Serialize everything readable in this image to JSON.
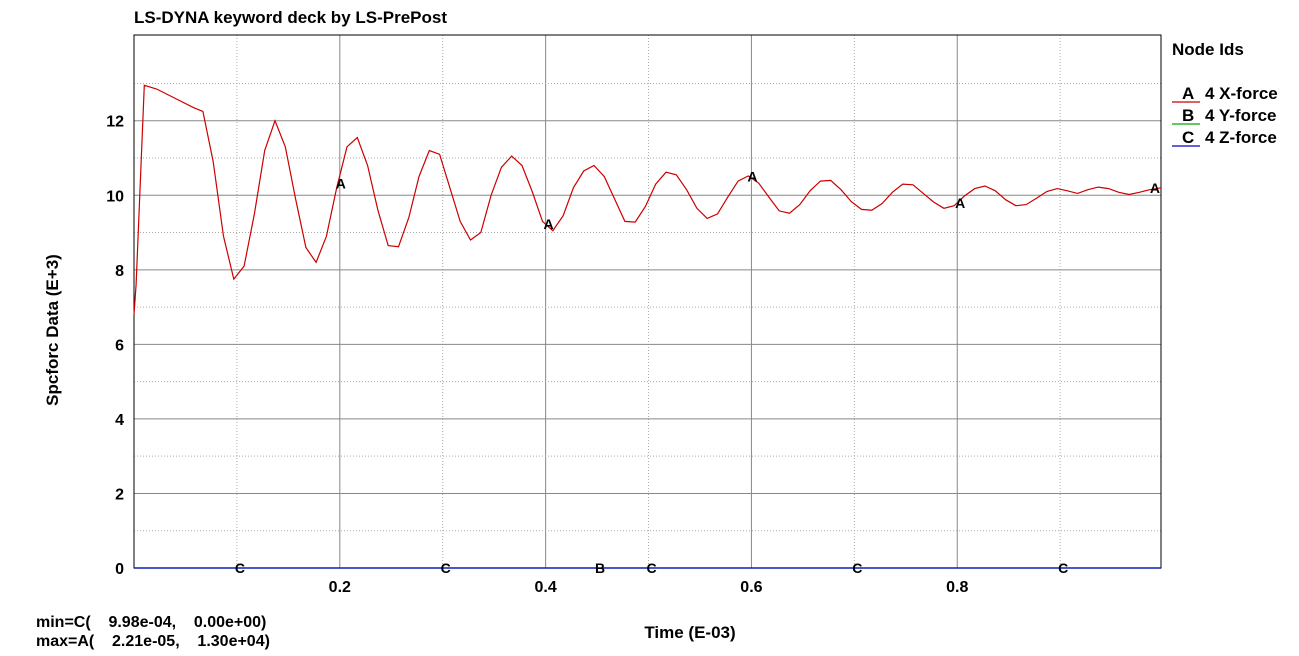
{
  "title": "LS-DYNA keyword deck by LS-PrePost",
  "legend": {
    "title": "Node Ids",
    "entries": [
      {
        "letter": "A",
        "label": "4 X-force",
        "color": "#cc0000"
      },
      {
        "letter": "B",
        "label": "4 Y-force",
        "color": "#00aa00"
      },
      {
        "letter": "C",
        "label": "4 Z-force",
        "color": "#0000cc"
      }
    ]
  },
  "minmax": {
    "min": "min=C(    9.98e-04,    0.00e+00)",
    "max": "max=A(    2.21e-05,    1.30e+04)"
  },
  "chart_data": {
    "type": "line",
    "title": "LS-DYNA keyword deck by LS-PrePost",
    "xlabel": "Time (E-03)",
    "ylabel": "Spcforc Data (E+3)",
    "xlim": [
      0,
      0.998
    ],
    "ylim": [
      0,
      14.3
    ],
    "xticks": [
      0.2,
      0.4,
      0.6,
      0.8
    ],
    "xtick_labels": [
      "0.2",
      "0.4",
      "0.6",
      "0.8"
    ],
    "xminor": [
      0.1,
      0.3,
      0.5,
      0.7,
      0.9
    ],
    "yticks": [
      0,
      2,
      4,
      6,
      8,
      10,
      12
    ],
    "ytick_labels": [
      "0",
      "2",
      "4",
      "6",
      "8",
      "10",
      "12"
    ],
    "yminor": [
      1,
      3,
      5,
      7,
      9,
      11,
      13
    ],
    "grid": true,
    "legend_position": "right",
    "series": [
      {
        "name": "4 X-force",
        "letter": "A",
        "color": "#cc0000",
        "x": [
          0.0,
          0.002,
          0.01,
          0.022,
          0.04,
          0.058,
          0.067,
          0.077,
          0.087,
          0.097,
          0.107,
          0.117,
          0.127,
          0.137,
          0.147,
          0.157,
          0.167,
          0.177,
          0.187,
          0.197,
          0.207,
          0.217,
          0.227,
          0.237,
          0.247,
          0.257,
          0.267,
          0.277,
          0.287,
          0.297,
          0.307,
          0.317,
          0.327,
          0.337,
          0.347,
          0.357,
          0.367,
          0.377,
          0.387,
          0.397,
          0.407,
          0.417,
          0.427,
          0.437,
          0.447,
          0.457,
          0.467,
          0.477,
          0.487,
          0.497,
          0.507,
          0.517,
          0.527,
          0.537,
          0.547,
          0.557,
          0.567,
          0.577,
          0.587,
          0.597,
          0.607,
          0.617,
          0.627,
          0.637,
          0.647,
          0.657,
          0.667,
          0.677,
          0.687,
          0.697,
          0.707,
          0.717,
          0.727,
          0.737,
          0.747,
          0.757,
          0.767,
          0.777,
          0.787,
          0.797,
          0.807,
          0.817,
          0.827,
          0.837,
          0.847,
          0.857,
          0.867,
          0.877,
          0.887,
          0.897,
          0.907,
          0.917,
          0.927,
          0.937,
          0.947,
          0.957,
          0.967,
          0.977,
          0.987,
          0.998
        ],
        "y": [
          6.8,
          7.6,
          12.95,
          12.85,
          12.6,
          12.35,
          12.25,
          10.9,
          8.9,
          7.75,
          8.1,
          9.5,
          11.2,
          12.0,
          11.3,
          9.9,
          8.6,
          8.2,
          8.9,
          10.2,
          11.3,
          11.55,
          10.8,
          9.6,
          8.65,
          8.62,
          9.4,
          10.5,
          11.2,
          11.1,
          10.2,
          9.3,
          8.8,
          9.0,
          10.0,
          10.75,
          11.05,
          10.8,
          10.1,
          9.3,
          9.05,
          9.45,
          10.2,
          10.65,
          10.8,
          10.5,
          9.9,
          9.3,
          9.28,
          9.7,
          10.3,
          10.62,
          10.55,
          10.15,
          9.65,
          9.38,
          9.5,
          9.95,
          10.38,
          10.52,
          10.33,
          9.95,
          9.58,
          9.52,
          9.75,
          10.12,
          10.38,
          10.4,
          10.15,
          9.83,
          9.62,
          9.6,
          9.78,
          10.08,
          10.3,
          10.28,
          10.05,
          9.82,
          9.65,
          9.72,
          9.98,
          10.18,
          10.25,
          10.12,
          9.88,
          9.72,
          9.75,
          9.92,
          10.1,
          10.18,
          10.12,
          10.05,
          10.15,
          10.22,
          10.18,
          10.08,
          10.02,
          10.08,
          10.15,
          10.2
        ]
      },
      {
        "name": "4 Y-force",
        "letter": "B",
        "color": "#00aa00",
        "x": [
          0.0,
          0.998
        ],
        "y": [
          0,
          0
        ]
      },
      {
        "name": "4 Z-force",
        "letter": "C",
        "color": "#0000cc",
        "x": [
          0.0,
          0.998
        ],
        "y": [
          0,
          0
        ]
      }
    ],
    "curve_markers": [
      {
        "series": "A",
        "x": [
          0.198,
          0.4,
          0.598,
          0.8,
          0.998
        ]
      },
      {
        "series": "B",
        "x": [
          0.45
        ]
      },
      {
        "series": "C",
        "x": [
          0.1,
          0.3,
          0.5,
          0.7,
          0.9
        ]
      }
    ]
  }
}
